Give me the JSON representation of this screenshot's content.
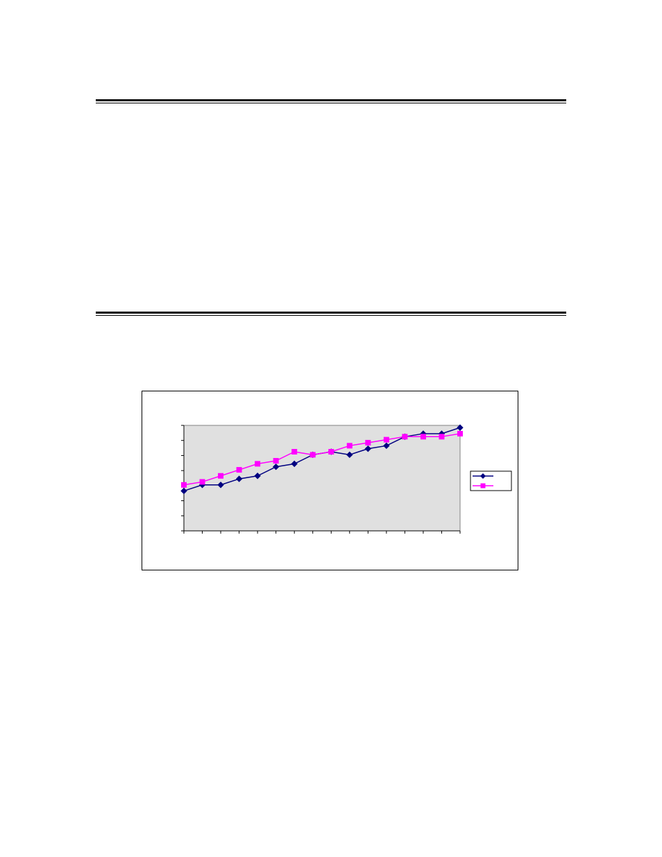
{
  "colors": {
    "series_1": "#000080",
    "series_2": "#FF00FF",
    "plot_background": "#E0E0E0",
    "rule": "#000000"
  },
  "chart_data": {
    "type": "line",
    "title": "",
    "xlabel": "",
    "ylabel": "",
    "legend_position": "right",
    "grid": false,
    "x": [
      1,
      2,
      3,
      4,
      5,
      6,
      7,
      8,
      9,
      10,
      11,
      12,
      13,
      14,
      15,
      16
    ],
    "ylim": [
      0,
      7
    ],
    "y_tick_count": 8,
    "x_tick_count": 16,
    "series": [
      {
        "marker": "diamond",
        "color": "#000080",
        "values": [
          2.65,
          3.05,
          3.05,
          3.45,
          3.65,
          4.25,
          4.45,
          5.05,
          5.25,
          5.05,
          5.45,
          5.65,
          6.25,
          6.45,
          6.45,
          6.85
        ]
      },
      {
        "marker": "square",
        "color": "#FF00FF",
        "values": [
          3.05,
          3.25,
          3.65,
          4.05,
          4.45,
          4.65,
          5.25,
          5.05,
          5.25,
          5.65,
          5.85,
          6.05,
          6.25,
          6.25,
          6.25,
          6.45
        ]
      }
    ]
  }
}
